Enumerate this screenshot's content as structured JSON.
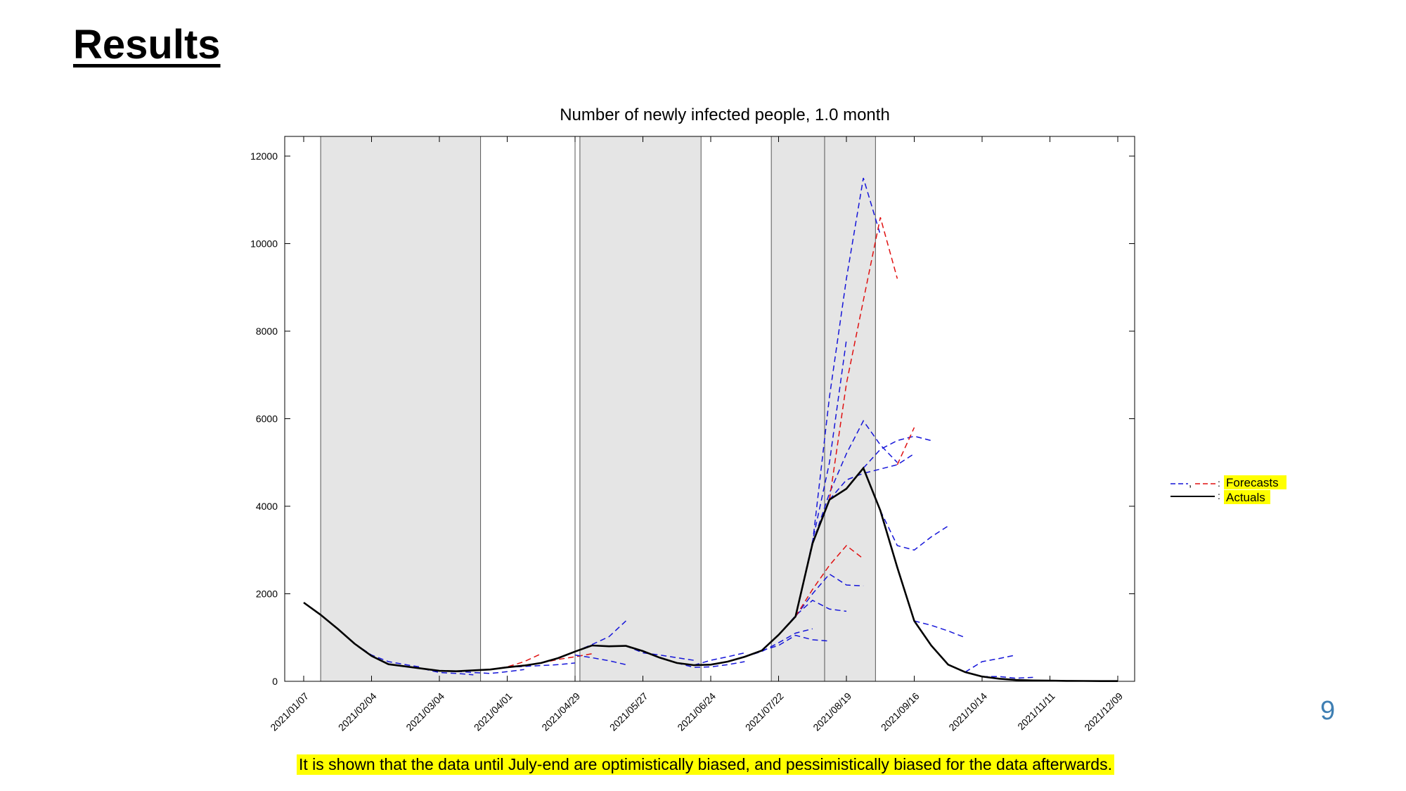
{
  "slide": {
    "title": "Results",
    "page_number": "9",
    "caption": "It is shown that the data until July-end are optimistically biased, and pessimistically biased for the data afterwards."
  },
  "colors": {
    "actual": "#000000",
    "forecast_blue": "#1515d9",
    "forecast_red": "#e01010",
    "shade": "#e5e5e5",
    "highlight": "#ffff00",
    "page_number": "#3f7fb3"
  },
  "legend": {
    "forecasts_label": "Forecasts",
    "actuals_label": "Actuals",
    "placement": "right-outside"
  },
  "chart_data": {
    "type": "line",
    "title": "Number of newly infected people, 1.0 month",
    "xlabel": "",
    "ylabel": "",
    "x_type": "date",
    "xlim": [
      "2021-01-07",
      "2021-12-09"
    ],
    "x_ticks": [
      "2021/01/07",
      "2021/02/04",
      "2021/03/04",
      "2021/04/01",
      "2021/04/29",
      "2021/05/27",
      "2021/06/24",
      "2021/07/22",
      "2021/08/19",
      "2021/09/16",
      "2021/10/14",
      "2021/11/11",
      "2021/12/09"
    ],
    "ylim": [
      0,
      12000
    ],
    "y_ticks": [
      0,
      2000,
      4000,
      6000,
      8000,
      10000,
      12000
    ],
    "grid": false,
    "shaded_periods": [
      [
        "2021-01-14",
        "2021-03-21"
      ],
      [
        "2021-05-01",
        "2021-06-20"
      ],
      [
        "2021-07-19",
        "2021-08-10"
      ],
      [
        "2021-08-10",
        "2021-08-31"
      ]
    ],
    "vertical_lines": [
      "2021-01-14",
      "2021-03-21",
      "2021-04-29",
      "2021-05-01",
      "2021-06-20",
      "2021-07-19",
      "2021-08-10",
      "2021-08-31"
    ],
    "series": [
      {
        "name": "Actuals",
        "style": "solid",
        "color": "#000000",
        "points": [
          [
            "2021-01-07",
            1800
          ],
          [
            "2021-01-14",
            1520
          ],
          [
            "2021-01-21",
            1200
          ],
          [
            "2021-01-28",
            860
          ],
          [
            "2021-02-04",
            580
          ],
          [
            "2021-02-11",
            390
          ],
          [
            "2021-02-18",
            340
          ],
          [
            "2021-02-25",
            290
          ],
          [
            "2021-03-04",
            240
          ],
          [
            "2021-03-11",
            230
          ],
          [
            "2021-03-18",
            250
          ],
          [
            "2021-03-25",
            270
          ],
          [
            "2021-04-01",
            320
          ],
          [
            "2021-04-08",
            360
          ],
          [
            "2021-04-15",
            420
          ],
          [
            "2021-04-22",
            530
          ],
          [
            "2021-04-29",
            680
          ],
          [
            "2021-05-06",
            820
          ],
          [
            "2021-05-13",
            800
          ],
          [
            "2021-05-20",
            810
          ],
          [
            "2021-05-27",
            690
          ],
          [
            "2021-06-03",
            540
          ],
          [
            "2021-06-10",
            420
          ],
          [
            "2021-06-17",
            370
          ],
          [
            "2021-06-24",
            380
          ],
          [
            "2021-07-01",
            450
          ],
          [
            "2021-07-08",
            560
          ],
          [
            "2021-07-15",
            700
          ],
          [
            "2021-07-22",
            1060
          ],
          [
            "2021-07-29",
            1480
          ],
          [
            "2021-08-05",
            3150
          ],
          [
            "2021-08-12",
            4150
          ],
          [
            "2021-08-19",
            4400
          ],
          [
            "2021-08-26",
            4870
          ],
          [
            "2021-09-02",
            3900
          ],
          [
            "2021-09-09",
            2600
          ],
          [
            "2021-09-16",
            1380
          ],
          [
            "2021-09-23",
            820
          ],
          [
            "2021-09-30",
            380
          ],
          [
            "2021-10-07",
            210
          ],
          [
            "2021-10-14",
            110
          ],
          [
            "2021-10-21",
            60
          ],
          [
            "2021-10-28",
            30
          ],
          [
            "2021-11-04",
            20
          ],
          [
            "2021-11-11",
            15
          ],
          [
            "2021-11-18",
            10
          ],
          [
            "2021-11-25",
            8
          ],
          [
            "2021-12-02",
            5
          ],
          [
            "2021-12-09",
            5
          ]
        ]
      },
      {
        "name": "",
        "style": "dashed",
        "color": "#1515d9",
        "points": [
          [
            "2021-01-28",
            860
          ],
          [
            "2021-02-04",
            600
          ],
          [
            "2021-02-11",
            450
          ],
          [
            "2021-02-18",
            380
          ],
          [
            "2021-02-25",
            320
          ]
        ]
      },
      {
        "name": "",
        "style": "dashed",
        "color": "#1515d9",
        "points": [
          [
            "2021-02-18",
            340
          ],
          [
            "2021-02-25",
            290
          ],
          [
            "2021-03-04",
            200
          ],
          [
            "2021-03-11",
            180
          ],
          [
            "2021-03-18",
            150
          ]
        ]
      },
      {
        "name": "",
        "style": "dashed",
        "color": "#1515d9",
        "points": [
          [
            "2021-03-11",
            230
          ],
          [
            "2021-03-18",
            200
          ],
          [
            "2021-03-25",
            180
          ],
          [
            "2021-04-01",
            220
          ],
          [
            "2021-04-08",
            270
          ]
        ]
      },
      {
        "name": "",
        "style": "dashed",
        "color": "#1515d9",
        "points": [
          [
            "2021-04-01",
            320
          ],
          [
            "2021-04-08",
            340
          ],
          [
            "2021-04-15",
            360
          ],
          [
            "2021-04-22",
            380
          ],
          [
            "2021-04-29",
            420
          ]
        ]
      },
      {
        "name": "",
        "style": "dashed",
        "color": "#e01010",
        "points": [
          [
            "2021-03-25",
            270
          ],
          [
            "2021-04-01",
            330
          ],
          [
            "2021-04-08",
            450
          ],
          [
            "2021-04-15",
            630
          ]
        ]
      },
      {
        "name": "",
        "style": "dashed",
        "color": "#e01010",
        "points": [
          [
            "2021-04-15",
            420
          ],
          [
            "2021-04-22",
            500
          ],
          [
            "2021-04-29",
            560
          ],
          [
            "2021-05-06",
            630
          ]
        ]
      },
      {
        "name": "",
        "style": "dashed",
        "color": "#1515d9",
        "points": [
          [
            "2021-04-29",
            680
          ],
          [
            "2021-05-06",
            840
          ],
          [
            "2021-05-13",
            1020
          ],
          [
            "2021-05-20",
            1380
          ]
        ]
      },
      {
        "name": "",
        "style": "dashed",
        "color": "#1515d9",
        "points": [
          [
            "2021-04-29",
            600
          ],
          [
            "2021-05-06",
            540
          ],
          [
            "2021-05-13",
            470
          ],
          [
            "2021-05-20",
            380
          ]
        ]
      },
      {
        "name": "",
        "style": "dashed",
        "color": "#1515d9",
        "points": [
          [
            "2021-05-20",
            810
          ],
          [
            "2021-05-27",
            650
          ],
          [
            "2021-06-03",
            600
          ],
          [
            "2021-06-10",
            540
          ],
          [
            "2021-06-17",
            480
          ]
        ]
      },
      {
        "name": "",
        "style": "dashed",
        "color": "#1515d9",
        "points": [
          [
            "2021-06-10",
            420
          ],
          [
            "2021-06-17",
            320
          ],
          [
            "2021-06-24",
            330
          ],
          [
            "2021-07-01",
            380
          ],
          [
            "2021-07-08",
            450
          ]
        ]
      },
      {
        "name": "",
        "style": "dashed",
        "color": "#1515d9",
        "points": [
          [
            "2021-06-17",
            370
          ],
          [
            "2021-06-24",
            480
          ],
          [
            "2021-07-01",
            560
          ],
          [
            "2021-07-08",
            650
          ]
        ]
      },
      {
        "name": "",
        "style": "dashed",
        "color": "#1515d9",
        "points": [
          [
            "2021-07-08",
            560
          ],
          [
            "2021-07-15",
            680
          ],
          [
            "2021-07-22",
            880
          ],
          [
            "2021-07-29",
            1100
          ],
          [
            "2021-08-05",
            1200
          ]
        ]
      },
      {
        "name": "",
        "style": "dashed",
        "color": "#1515d9",
        "points": [
          [
            "2021-07-15",
            700
          ],
          [
            "2021-07-22",
            820
          ],
          [
            "2021-07-29",
            1050
          ],
          [
            "2021-08-05",
            950
          ],
          [
            "2021-08-12",
            920
          ]
        ]
      },
      {
        "name": "",
        "style": "dashed",
        "color": "#1515d9",
        "points": [
          [
            "2021-07-22",
            1060
          ],
          [
            "2021-07-29",
            1500
          ],
          [
            "2021-08-05",
            1850
          ],
          [
            "2021-08-12",
            1650
          ],
          [
            "2021-08-19",
            1600
          ]
        ]
      },
      {
        "name": "",
        "style": "dashed",
        "color": "#1515d9",
        "points": [
          [
            "2021-07-29",
            1480
          ],
          [
            "2021-08-05",
            2000
          ],
          [
            "2021-08-12",
            2450
          ],
          [
            "2021-08-19",
            2200
          ],
          [
            "2021-08-26",
            2180
          ]
        ]
      },
      {
        "name": "",
        "style": "dashed",
        "color": "#e01010",
        "points": [
          [
            "2021-07-29",
            1480
          ],
          [
            "2021-08-05",
            2100
          ],
          [
            "2021-08-12",
            2650
          ],
          [
            "2021-08-19",
            3100
          ],
          [
            "2021-08-26",
            2800
          ]
        ]
      },
      {
        "name": "",
        "style": "dashed",
        "color": "#1515d9",
        "points": [
          [
            "2021-07-29",
            1480
          ],
          [
            "2021-08-05",
            3200
          ],
          [
            "2021-08-12",
            5000
          ],
          [
            "2021-08-19",
            7800
          ]
        ]
      },
      {
        "name": "",
        "style": "dashed",
        "color": "#1515d9",
        "points": [
          [
            "2021-08-05",
            3150
          ],
          [
            "2021-08-12",
            4300
          ],
          [
            "2021-08-19",
            5200
          ],
          [
            "2021-08-26",
            5950
          ],
          [
            "2021-09-02",
            5400
          ],
          [
            "2021-09-09",
            5000
          ]
        ]
      },
      {
        "name": "",
        "style": "dashed",
        "color": "#1515d9",
        "points": [
          [
            "2021-08-05",
            3150
          ],
          [
            "2021-08-12",
            6500
          ],
          [
            "2021-08-19",
            9200
          ],
          [
            "2021-08-26",
            11500
          ],
          [
            "2021-09-02",
            10200
          ]
        ]
      },
      {
        "name": "",
        "style": "dashed",
        "color": "#e01010",
        "points": [
          [
            "2021-08-12",
            4150
          ],
          [
            "2021-08-19",
            6800
          ],
          [
            "2021-08-26",
            8700
          ],
          [
            "2021-09-02",
            10600
          ],
          [
            "2021-09-09",
            9200
          ]
        ]
      },
      {
        "name": "",
        "style": "dashed",
        "color": "#1515d9",
        "points": [
          [
            "2021-08-12",
            4150
          ],
          [
            "2021-08-19",
            4600
          ],
          [
            "2021-08-26",
            4750
          ],
          [
            "2021-09-02",
            4850
          ],
          [
            "2021-09-09",
            4950
          ],
          [
            "2021-09-16",
            5200
          ]
        ]
      },
      {
        "name": "",
        "style": "dashed",
        "color": "#1515d9",
        "points": [
          [
            "2021-08-26",
            4870
          ],
          [
            "2021-09-02",
            5300
          ],
          [
            "2021-09-09",
            5500
          ],
          [
            "2021-09-16",
            5600
          ],
          [
            "2021-09-23",
            5500
          ]
        ]
      },
      {
        "name": "",
        "style": "dashed",
        "color": "#e01010",
        "points": [
          [
            "2021-09-09",
            4950
          ],
          [
            "2021-09-16",
            5800
          ]
        ]
      },
      {
        "name": "",
        "style": "dashed",
        "color": "#1515d9",
        "points": [
          [
            "2021-09-02",
            3900
          ],
          [
            "2021-09-09",
            3100
          ],
          [
            "2021-09-16",
            3000
          ],
          [
            "2021-09-23",
            3300
          ],
          [
            "2021-09-30",
            3550
          ]
        ]
      },
      {
        "name": "",
        "style": "dashed",
        "color": "#1515d9",
        "points": [
          [
            "2021-09-16",
            1380
          ],
          [
            "2021-09-23",
            1280
          ],
          [
            "2021-09-30",
            1150
          ],
          [
            "2021-10-07",
            1000
          ]
        ]
      },
      {
        "name": "",
        "style": "dashed",
        "color": "#1515d9",
        "points": [
          [
            "2021-10-07",
            210
          ],
          [
            "2021-10-14",
            450
          ],
          [
            "2021-10-21",
            520
          ],
          [
            "2021-10-28",
            600
          ]
        ]
      },
      {
        "name": "",
        "style": "dashed",
        "color": "#1515d9",
        "points": [
          [
            "2021-10-14",
            110
          ],
          [
            "2021-10-21",
            110
          ],
          [
            "2021-10-28",
            70
          ],
          [
            "2021-11-04",
            90
          ]
        ]
      }
    ]
  }
}
